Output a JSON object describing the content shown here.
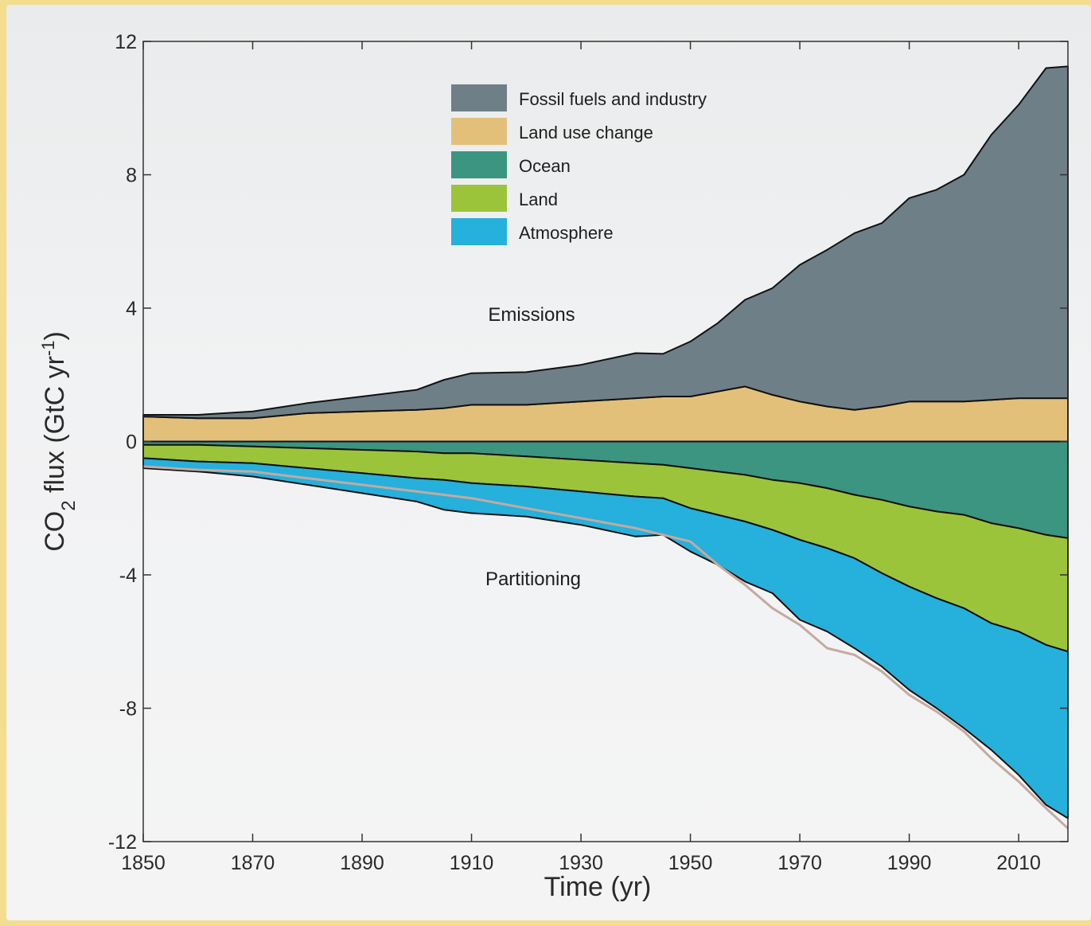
{
  "chart_data": {
    "type": "area",
    "xlabel": "Time (yr)",
    "ylabel": "CO2 flux (GtC yr-1)",
    "ylabel_parts": {
      "main": "CO",
      "sub": "2",
      "rest": " flux (GtC yr",
      "sup": "-1",
      "close": ")"
    },
    "xlim": [
      1850,
      2019
    ],
    "ylim": [
      -12,
      12
    ],
    "xticks": [
      1850,
      1870,
      1890,
      1910,
      1930,
      1950,
      1970,
      1990,
      2010
    ],
    "yticks": [
      12,
      8,
      4,
      0,
      -4,
      -8,
      -12
    ],
    "grid": false,
    "legend_position": "top-center",
    "colors": {
      "fossil": "#6f7f87",
      "landuse": "#e3c07a",
      "ocean": "#3b9580",
      "land": "#9cc43a",
      "atmosphere": "#26b0dc",
      "imbalance": "#c3aaa0"
    },
    "annotations": [
      "Emissions",
      "Partitioning"
    ],
    "legend": [
      {
        "name": "Fossil fuels and industry",
        "color": "#6f7f87"
      },
      {
        "name": "Land use change",
        "color": "#e3c07a"
      },
      {
        "name": "Ocean",
        "color": "#3b9580"
      },
      {
        "name": "Land",
        "color": "#9cc43a"
      },
      {
        "name": "Atmosphere",
        "color": "#26b0dc"
      }
    ],
    "x": [
      1850,
      1860,
      1870,
      1880,
      1890,
      1900,
      1905,
      1910,
      1920,
      1930,
      1940,
      1945,
      1950,
      1955,
      1960,
      1965,
      1970,
      1975,
      1980,
      1985,
      1990,
      1995,
      2000,
      2005,
      2010,
      2015,
      2019
    ],
    "series": [
      {
        "name": "Fossil fuels and industry",
        "values": [
          0.05,
          0.1,
          0.2,
          0.3,
          0.45,
          0.6,
          0.85,
          0.95,
          0.98,
          1.1,
          1.35,
          1.28,
          1.65,
          2.05,
          2.6,
          3.2,
          4.1,
          4.7,
          5.3,
          5.5,
          6.1,
          6.35,
          6.8,
          7.95,
          8.8,
          9.9,
          9.95
        ]
      },
      {
        "name": "Land use change",
        "values": [
          0.75,
          0.7,
          0.7,
          0.85,
          0.9,
          0.95,
          1.0,
          1.1,
          1.1,
          1.2,
          1.3,
          1.35,
          1.35,
          1.5,
          1.65,
          1.4,
          1.2,
          1.05,
          0.95,
          1.05,
          1.2,
          1.2,
          1.2,
          1.25,
          1.3,
          1.3,
          1.3
        ]
      },
      {
        "name": "Ocean",
        "values": [
          -0.1,
          -0.1,
          -0.15,
          -0.2,
          -0.25,
          -0.3,
          -0.35,
          -0.35,
          -0.45,
          -0.55,
          -0.65,
          -0.7,
          -0.8,
          -0.9,
          -1.0,
          -1.15,
          -1.25,
          -1.4,
          -1.6,
          -1.75,
          -1.95,
          -2.1,
          -2.2,
          -2.45,
          -2.6,
          -2.8,
          -2.9
        ]
      },
      {
        "name": "Land",
        "values": [
          -0.4,
          -0.5,
          -0.5,
          -0.6,
          -0.7,
          -0.8,
          -0.8,
          -0.9,
          -0.9,
          -0.95,
          -1.0,
          -1.0,
          -1.2,
          -1.3,
          -1.4,
          -1.5,
          -1.7,
          -1.8,
          -1.9,
          -2.2,
          -2.4,
          -2.6,
          -2.8,
          -3.0,
          -3.1,
          -3.3,
          -3.4
        ]
      },
      {
        "name": "Atmosphere",
        "values": [
          -0.3,
          -0.3,
          -0.4,
          -0.5,
          -0.6,
          -0.7,
          -0.9,
          -0.9,
          -0.9,
          -1.0,
          -1.2,
          -1.1,
          -1.3,
          -1.5,
          -1.8,
          -1.9,
          -2.4,
          -2.5,
          -2.7,
          -2.8,
          -3.1,
          -3.3,
          -3.6,
          -3.8,
          -4.3,
          -4.8,
          -5.0
        ]
      }
    ],
    "imbalance_line": {
      "values": [
        -0.75,
        -0.85,
        -0.9,
        -1.1,
        -1.3,
        -1.5,
        -1.6,
        -1.7,
        -2.0,
        -2.3,
        -2.6,
        -2.8,
        -3.0,
        -3.7,
        -4.3,
        -5.0,
        -5.5,
        -6.2,
        -6.4,
        -6.9,
        -7.6,
        -8.1,
        -8.7,
        -9.5,
        -10.2,
        -11.0,
        -11.6
      ]
    }
  }
}
